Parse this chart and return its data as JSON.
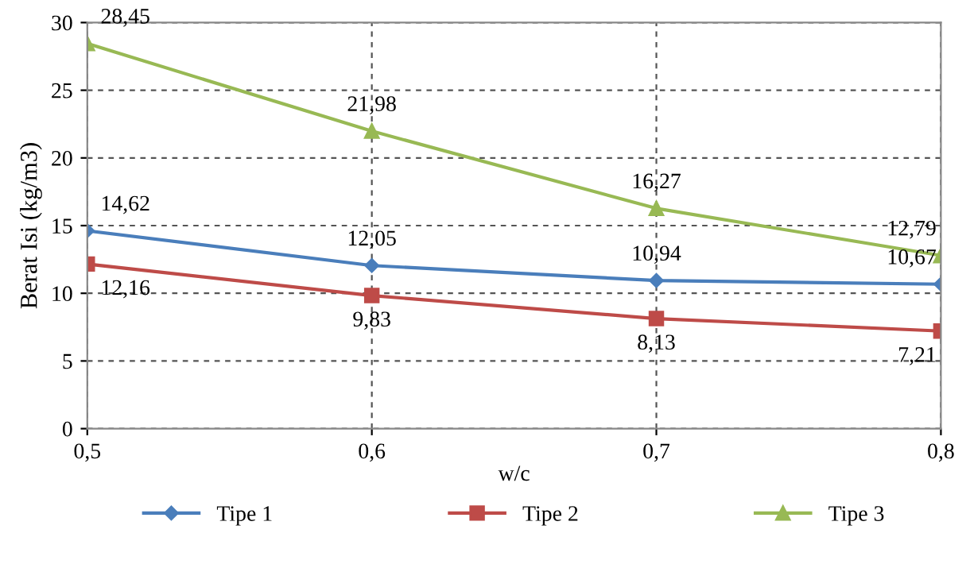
{
  "chart_data": {
    "type": "line",
    "xlabel": "w/c",
    "ylabel": "Berat Isi (kg/m3)",
    "x": [
      0.5,
      0.6,
      0.7,
      0.8
    ],
    "xlim": [
      0.5,
      0.8
    ],
    "xticks": [
      {
        "value": 0.5,
        "label": "0,5"
      },
      {
        "value": 0.6,
        "label": "0,6"
      },
      {
        "value": 0.7,
        "label": "0,7"
      },
      {
        "value": 0.8,
        "label": "0,8"
      }
    ],
    "ylim": [
      0,
      30
    ],
    "yticks": [
      0,
      5,
      10,
      15,
      20,
      25,
      30
    ],
    "grid": true,
    "legend": "bottom",
    "line_style": "solid",
    "series": [
      {
        "name": "Tipe 1",
        "color": "#4a7ebb",
        "marker": "diamond",
        "values": [
          14.62,
          12.05,
          10.94,
          10.67
        ],
        "value_labels": [
          "14,62",
          "12,05",
          "10,94",
          "10,67"
        ]
      },
      {
        "name": "Tipe 2",
        "color": "#be4b48",
        "marker": "square",
        "values": [
          12.16,
          9.83,
          8.13,
          7.21
        ],
        "value_labels": [
          "12,16",
          "9,83",
          "8,13",
          "7,21"
        ]
      },
      {
        "name": "Tipe 3",
        "color": "#98b954",
        "marker": "triangle",
        "values": [
          28.45,
          21.98,
          16.27,
          12.79
        ],
        "value_labels": [
          "28,45",
          "21,98",
          "16,27",
          "12,79"
        ]
      }
    ]
  }
}
